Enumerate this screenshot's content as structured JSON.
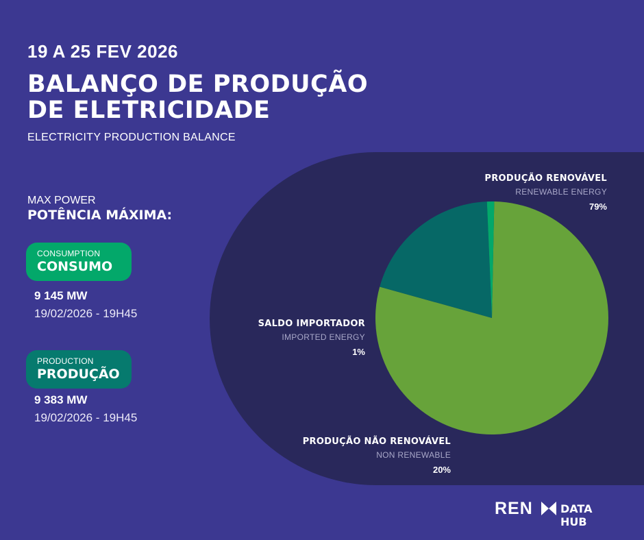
{
  "header": {
    "date": "19 A 25 FEV 2026",
    "title_line1": "BALANÇO DE PRODUÇÃO",
    "title_line2": "DE ELETRICIDADE",
    "subtitle": "ELECTRICITY PRODUCTION BALANCE"
  },
  "max_power": {
    "label_en": "MAX POWER",
    "label_pt": "POTÊNCIA MÁXIMA:",
    "consumption": {
      "label_en": "CONSUMPTION",
      "label_pt": "CONSUMO",
      "value": "9 145 MW",
      "datetime": "19/02/2026 - 19H45"
    },
    "production": {
      "label_en": "PRODUCTION",
      "label_pt": "PRODUÇÃO",
      "value": "9 383 MW",
      "datetime": "19/02/2026 - 19H45"
    }
  },
  "chart_data": {
    "type": "pie",
    "slices": [
      {
        "label_pt": "PRODUÇÃO RENOVÁVEL",
        "label_en": "RENEWABLE ENERGY",
        "value": 79,
        "value_label": "79%",
        "color": "#67a33a"
      },
      {
        "label_pt": "PRODUÇÃO NÃO RENOVÁVEL",
        "label_en": "NON RENEWABLE",
        "value": 20,
        "value_label": "20%",
        "color": "#066866"
      },
      {
        "label_pt": "SALDO IMPORTADOR",
        "label_en": "IMPORTED ENERGY",
        "value": 1,
        "value_label": "1%",
        "color": "#03a86a"
      }
    ]
  },
  "colors": {
    "background": "#3c3891",
    "panel": "#29285b",
    "consumption_pill": "#03a86a",
    "production_pill": "#067a6e"
  },
  "logo": {
    "brand": "REN",
    "product": "DATA HUB"
  }
}
